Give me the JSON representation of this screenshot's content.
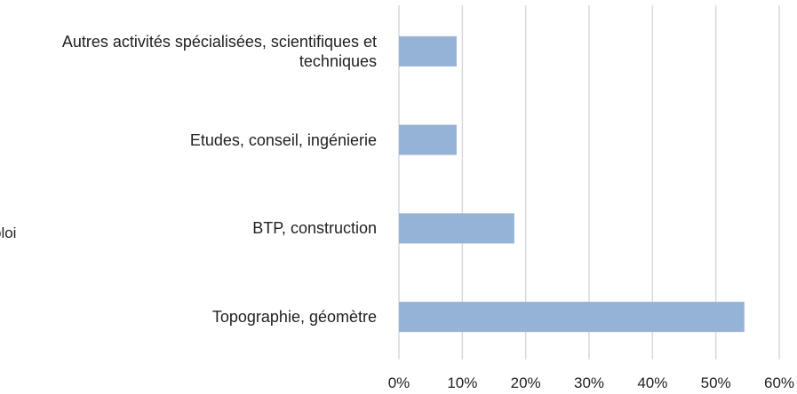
{
  "chart_data": {
    "type": "bar",
    "orientation": "horizontal",
    "y_axis_label": "ploi",
    "categories": [
      "Autres activités spécialisées, scientifiques et techniques",
      "Etudes, conseil, ingénierie",
      "BTP, construction",
      "Topographie, géomètre"
    ],
    "values": [
      9.1,
      9.1,
      18.2,
      54.5
    ],
    "color": "#95b3d7",
    "xlim": [
      0,
      60
    ],
    "xticks": [
      {
        "value": 0,
        "label": "0%"
      },
      {
        "value": 10,
        "label": "10%"
      },
      {
        "value": 20,
        "label": "20%"
      },
      {
        "value": 30,
        "label": "30%"
      },
      {
        "value": 40,
        "label": "40%"
      },
      {
        "value": 50,
        "label": "50%"
      },
      {
        "value": 60,
        "label": "60%"
      }
    ],
    "grid": true
  }
}
